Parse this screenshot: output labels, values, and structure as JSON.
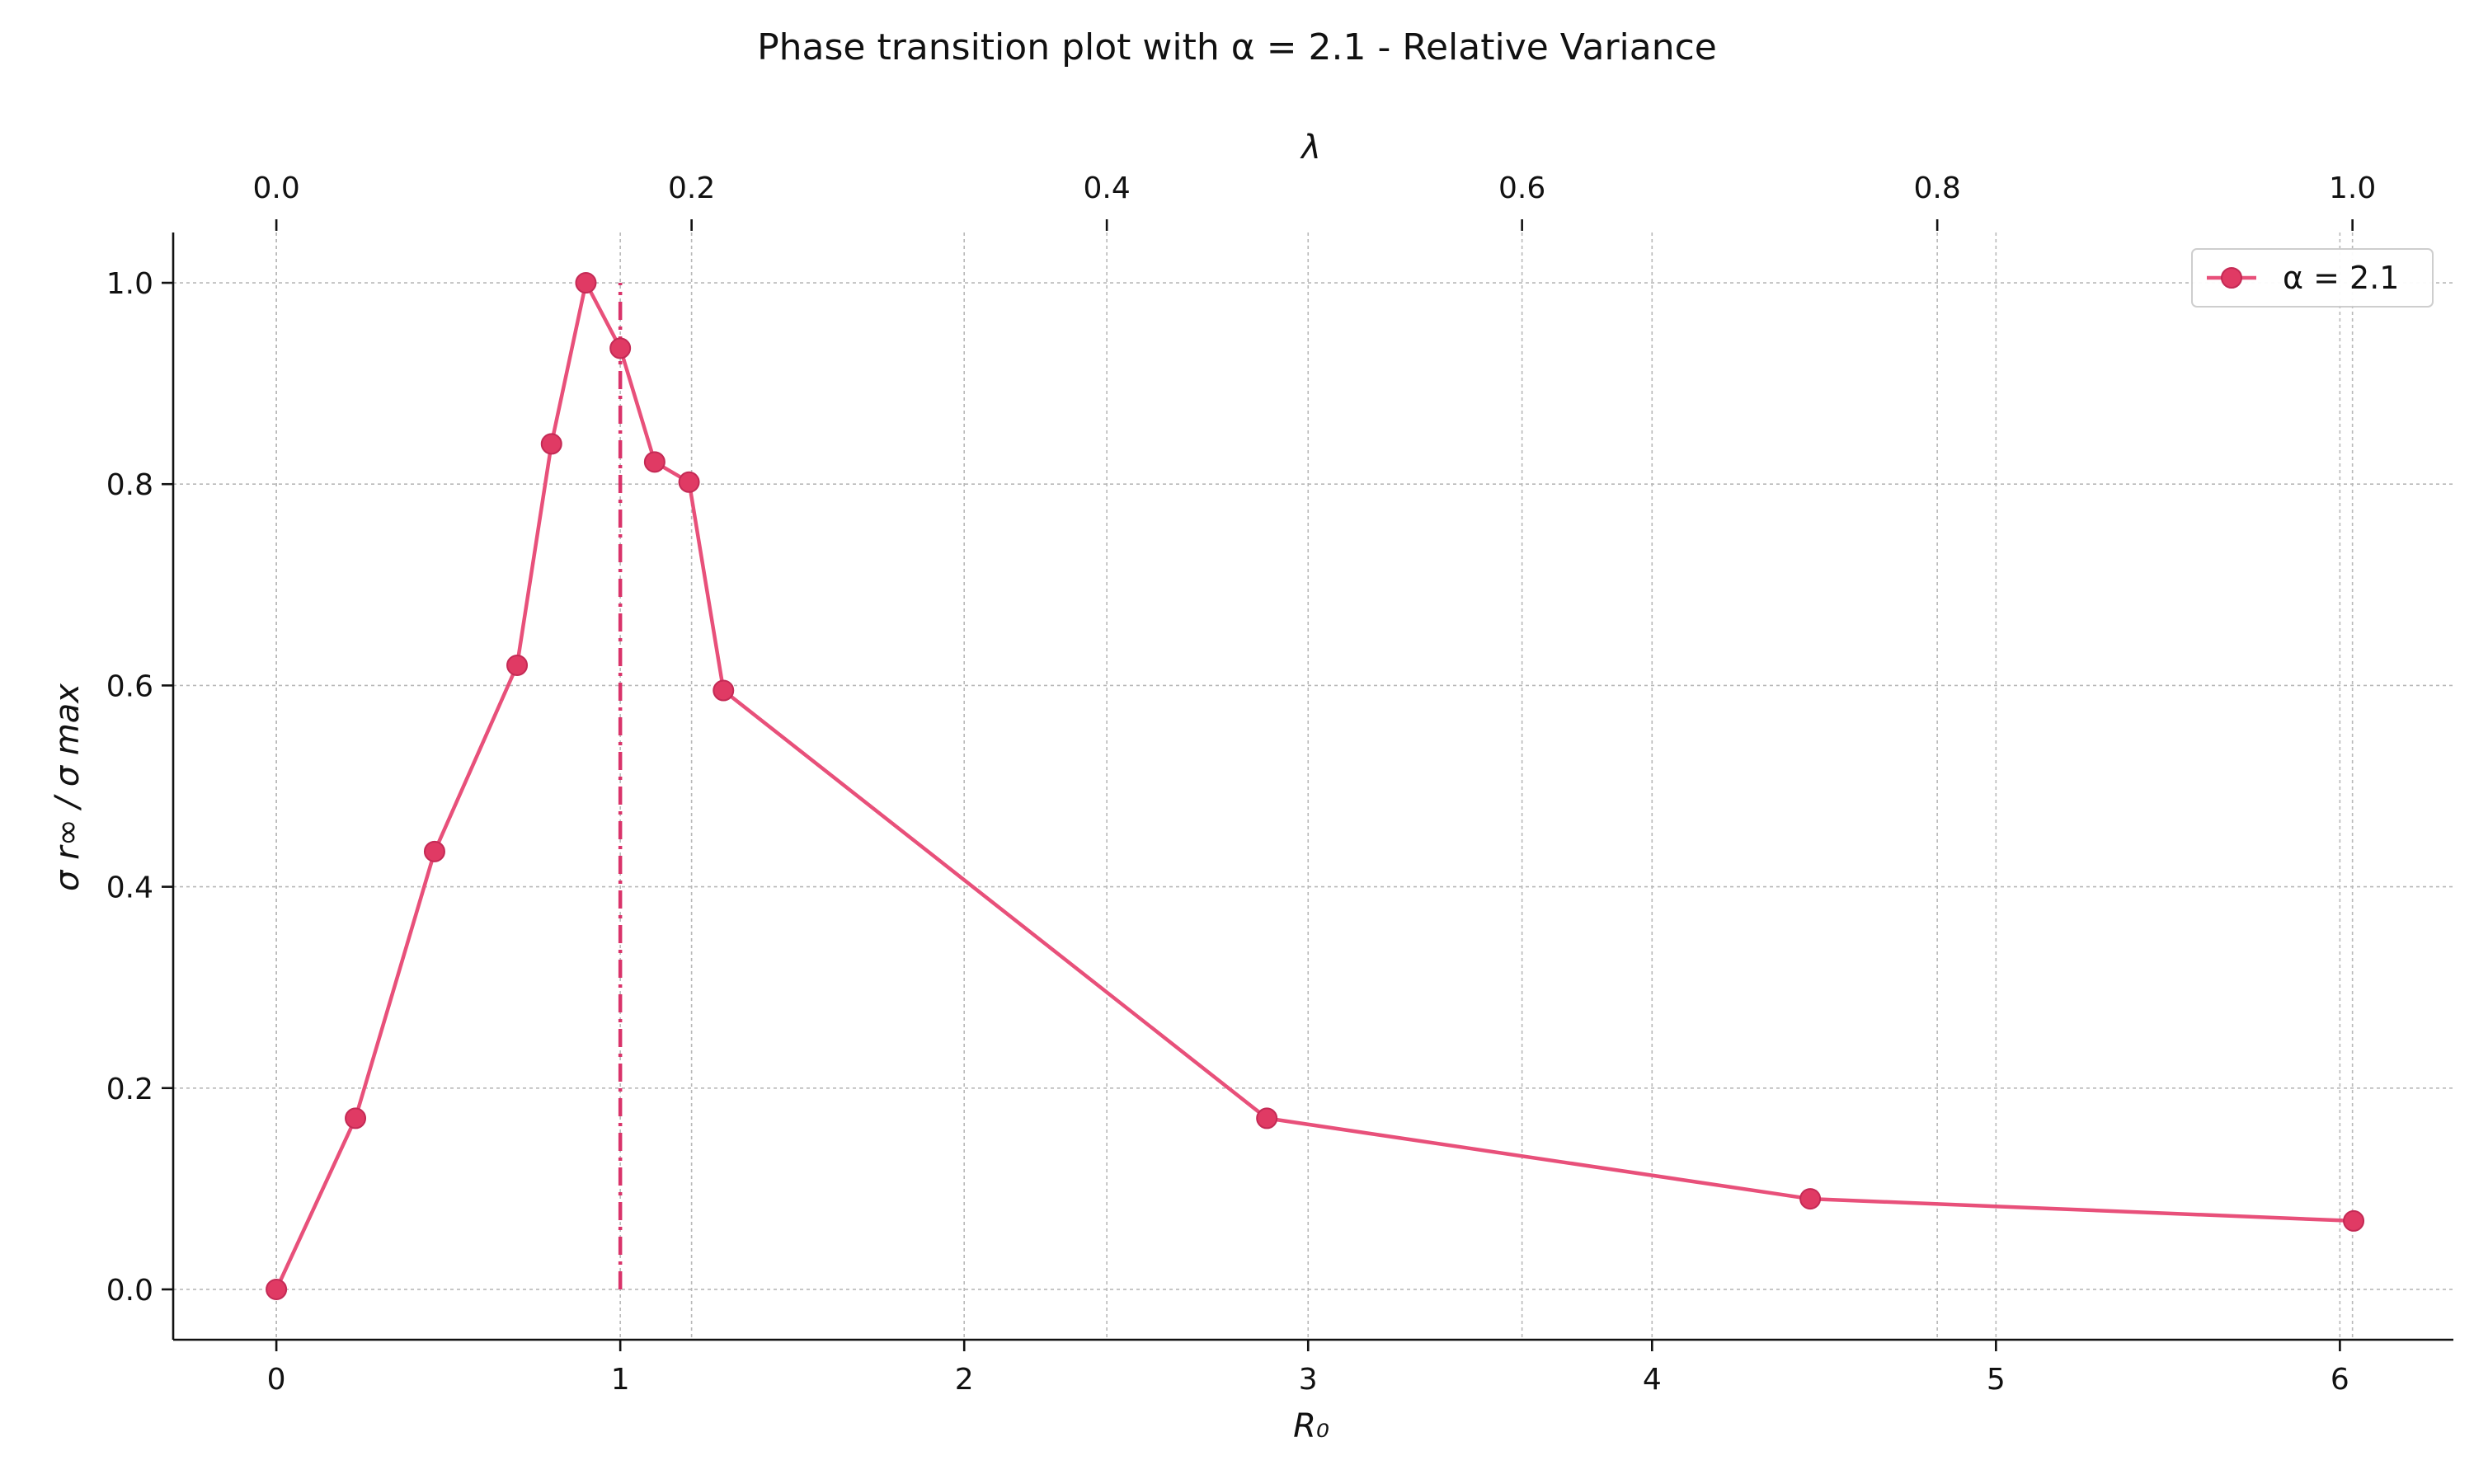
{
  "chart_data": {
    "type": "line",
    "title": "Phase transition plot with α = 2.1 - Relative Variance",
    "xlabel": "R₀",
    "ylabel": "σ r∞ / σ max",
    "x2label": "λ",
    "xlim": [
      -0.3,
      6.33
    ],
    "ylim": [
      -0.05,
      1.05
    ],
    "x2lim": [
      -0.0497,
      1.0486
    ],
    "xticks": [
      0,
      1,
      2,
      3,
      4,
      5,
      6
    ],
    "yticks": [
      "0.0",
      "0.2",
      "0.4",
      "0.6",
      "0.8",
      "1.0"
    ],
    "x2ticks": [
      "0.0",
      "0.2",
      "0.4",
      "0.6",
      "0.8",
      "1.0"
    ],
    "grid": true,
    "legend_position": "top-right",
    "vline": {
      "x": 1.0,
      "ymin": 0.0,
      "ymax": 1.0,
      "style": "dashdot"
    },
    "series": [
      {
        "name": "α = 2.1",
        "color": "#e8507a",
        "marker_color": "#e03a64",
        "x": [
          0.0,
          0.23,
          0.46,
          0.7,
          0.8,
          0.9,
          1.0,
          1.1,
          1.2,
          1.3,
          2.88,
          4.46,
          6.04
        ],
        "y": [
          0.0,
          0.17,
          0.435,
          0.62,
          0.84,
          1.0,
          0.935,
          0.822,
          0.802,
          0.595,
          0.17,
          0.09,
          0.068
        ]
      }
    ]
  }
}
